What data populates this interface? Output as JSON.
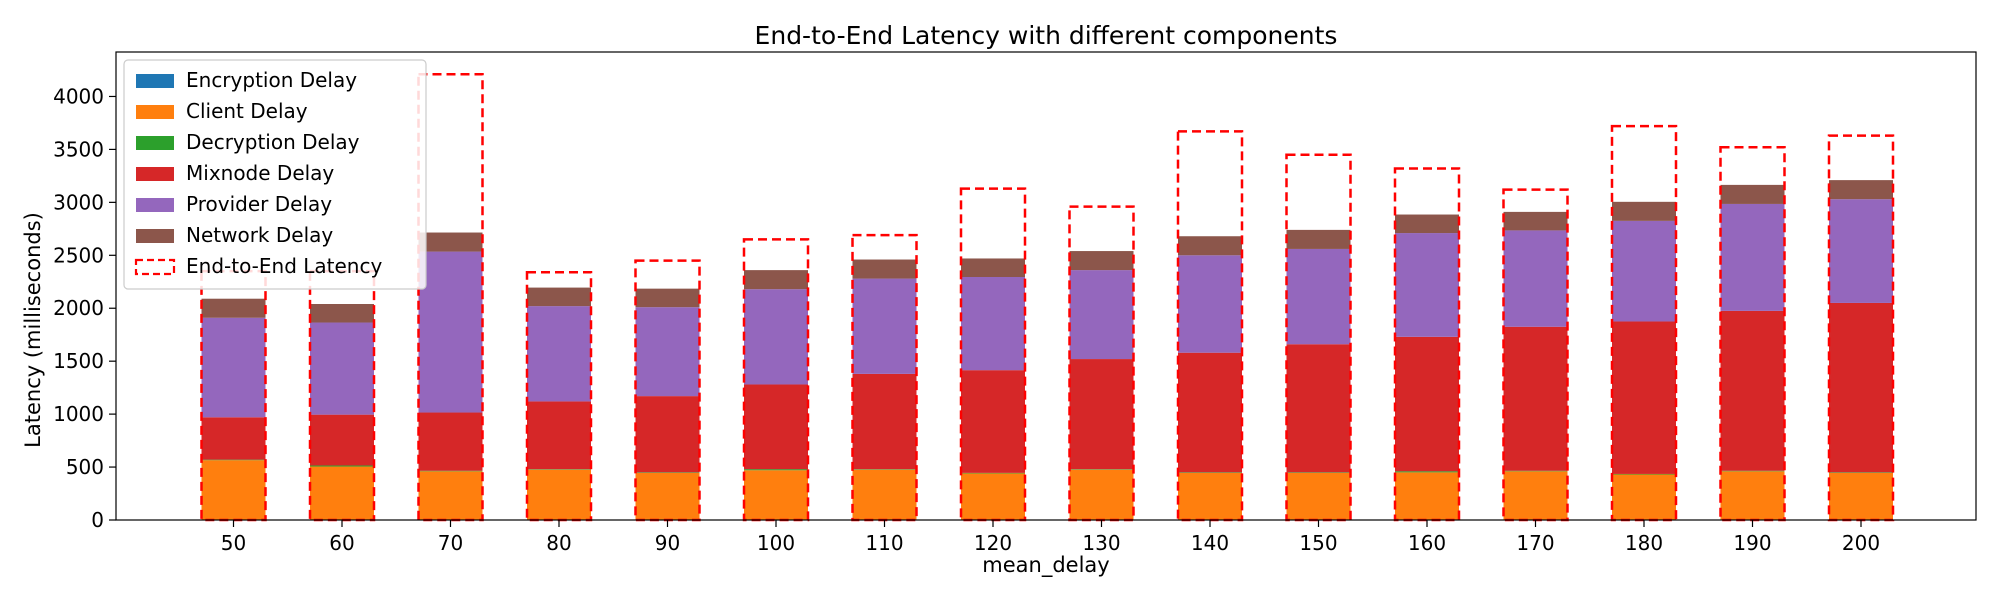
{
  "chart_data": {
    "type": "bar",
    "stacked": true,
    "title": "End-to-End Latency with different components",
    "xlabel": "mean_delay",
    "ylabel": "Latency (milliseconds)",
    "categories": [
      "50",
      "60",
      "70",
      "80",
      "90",
      "100",
      "110",
      "120",
      "130",
      "140",
      "150",
      "160",
      "170",
      "180",
      "190",
      "200"
    ],
    "ylim": [
      0,
      4420
    ],
    "yticks": [
      0,
      500,
      1000,
      1500,
      2000,
      2500,
      3000,
      3500,
      4000
    ],
    "grid": false,
    "legend_position": "upper-left",
    "series": [
      {
        "name": "Encryption Delay",
        "color": "#1f77b4",
        "values": [
          5,
          5,
          5,
          5,
          5,
          5,
          5,
          5,
          5,
          5,
          5,
          5,
          5,
          5,
          5,
          5
        ]
      },
      {
        "name": "Client Delay",
        "color": "#ff7f0e",
        "values": [
          560,
          500,
          455,
          470,
          440,
          465,
          470,
          435,
          470,
          440,
          440,
          445,
          455,
          425,
          455,
          440
        ]
      },
      {
        "name": "Decryption Delay",
        "color": "#2ca02c",
        "values": [
          5,
          10,
          5,
          5,
          5,
          10,
          5,
          5,
          5,
          5,
          5,
          10,
          5,
          5,
          5,
          5
        ]
      },
      {
        "name": "Mixnode Delay",
        "color": "#d62728",
        "values": [
          400,
          480,
          550,
          640,
          720,
          800,
          900,
          970,
          1040,
          1130,
          1210,
          1270,
          1360,
          1440,
          1510,
          1600
        ]
      },
      {
        "name": "Provider Delay",
        "color": "#9467bd",
        "values": [
          940,
          870,
          1520,
          900,
          840,
          900,
          900,
          880,
          840,
          920,
          900,
          980,
          910,
          950,
          1010,
          980
        ]
      },
      {
        "name": "Network Delay",
        "color": "#8c564b",
        "values": [
          180,
          175,
          180,
          175,
          175,
          180,
          180,
          175,
          180,
          180,
          180,
          175,
          175,
          180,
          180,
          180
        ]
      }
    ],
    "end_to_end": {
      "name": "End-to-End Latency",
      "color": "#ff0000",
      "style": "dashed",
      "values": [
        2350,
        2350,
        4210,
        2340,
        2450,
        2650,
        2690,
        3130,
        2960,
        3670,
        3450,
        3320,
        3120,
        3720,
        3520,
        3630
      ]
    }
  }
}
